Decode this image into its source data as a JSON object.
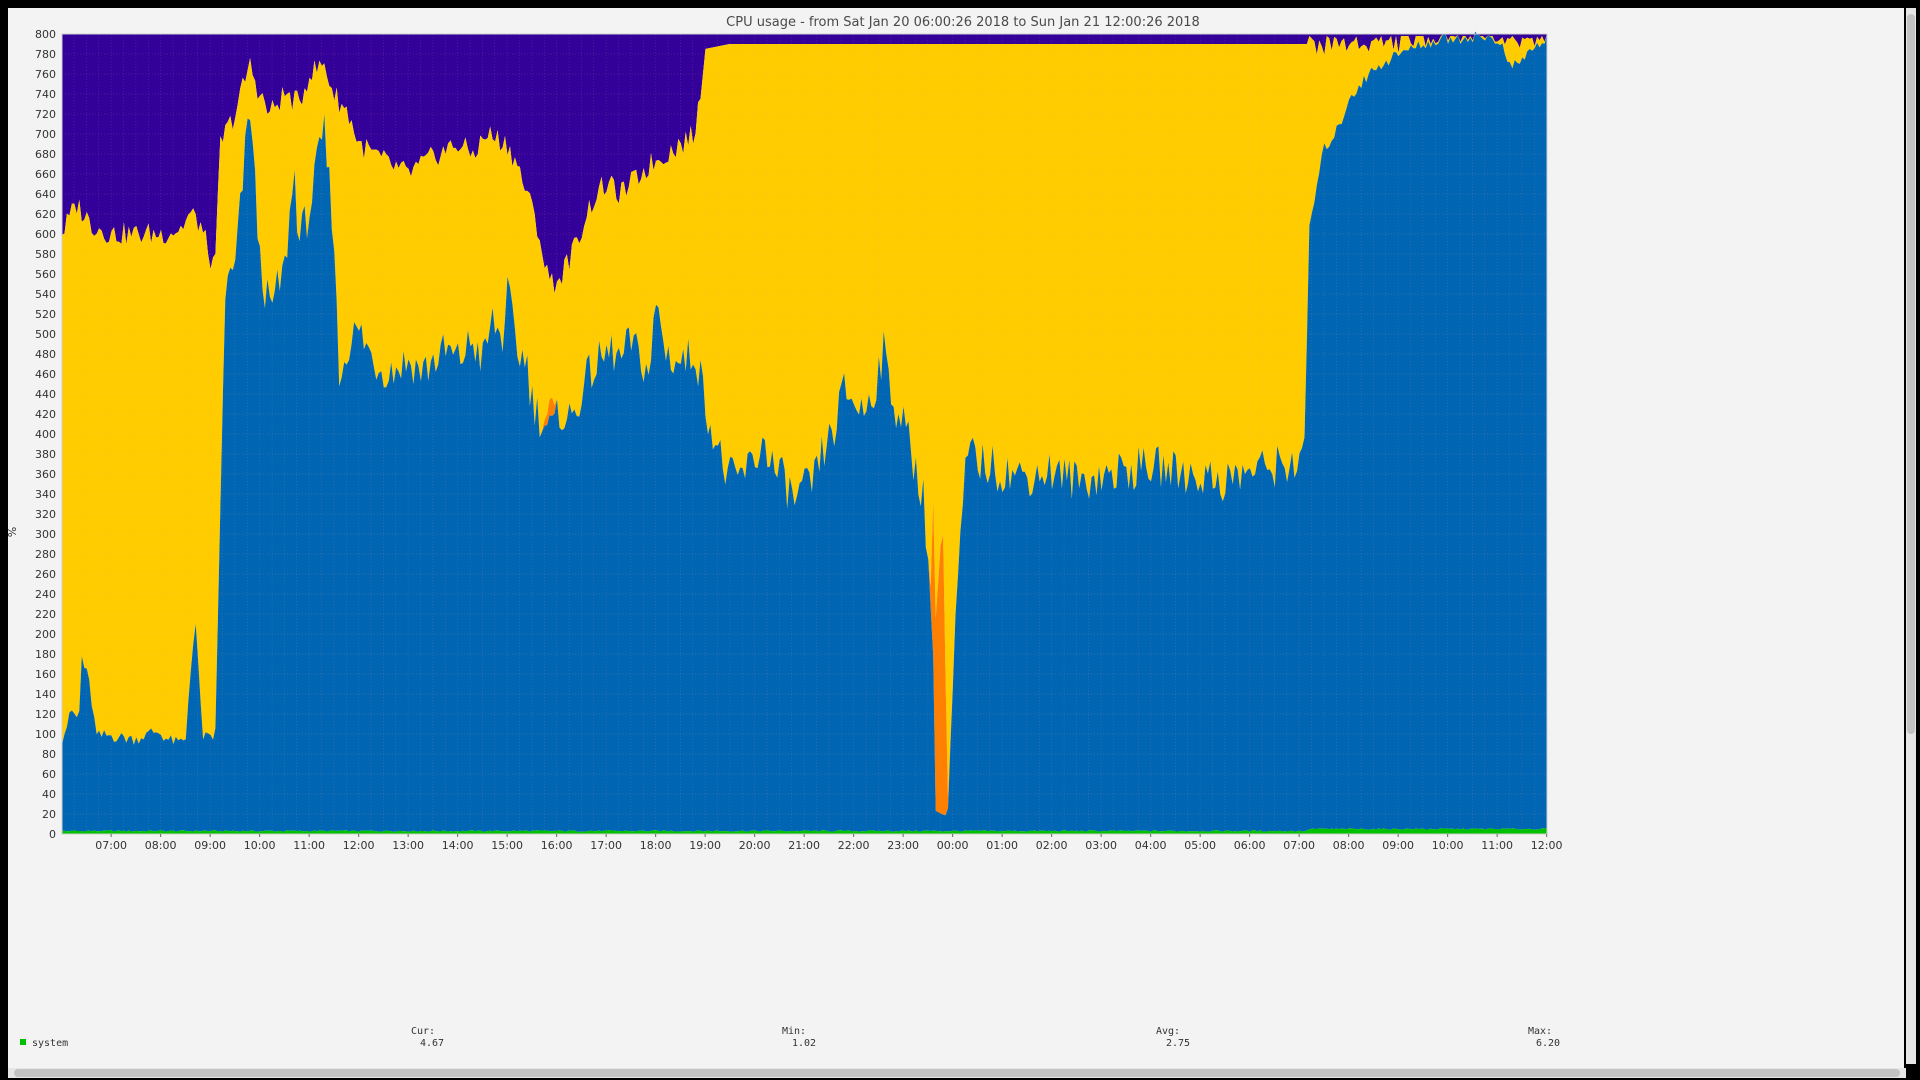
{
  "chart_data": {
    "type": "area",
    "title": "CPU usage - from Sat Jan 20 06:00:26 2018 to Sun Jan 21 12:00:26 2018",
    "ylabel": "%",
    "ylim": [
      0,
      800
    ],
    "y_tick_step": 20,
    "x_start_hour": 6.007,
    "x_end_hour": 36.007,
    "x_ticks": [
      "07:00",
      "08:00",
      "09:00",
      "10:00",
      "11:00",
      "12:00",
      "13:00",
      "14:00",
      "15:00",
      "16:00",
      "17:00",
      "18:00",
      "19:00",
      "20:00",
      "21:00",
      "22:00",
      "23:00",
      "00:00",
      "01:00",
      "02:00",
      "03:00",
      "04:00",
      "05:00",
      "06:00",
      "07:00",
      "08:00",
      "09:00",
      "10:00",
      "11:00",
      "12:00"
    ],
    "x_tick_hours": [
      7,
      8,
      9,
      10,
      11,
      12,
      13,
      14,
      15,
      16,
      17,
      18,
      19,
      20,
      21,
      22,
      23,
      24,
      25,
      26,
      27,
      28,
      29,
      30,
      31,
      32,
      33,
      34,
      35,
      36
    ],
    "grid": true,
    "colors": {
      "system": "#00c000",
      "user": "#0066b3",
      "iowait": "#ff8000",
      "nice": "#ffcc00",
      "idle": "#330099",
      "background": "#f3f3f3",
      "plot_background": "#ffffff"
    },
    "series_order": [
      "system",
      "user",
      "iowait",
      "nice",
      "idle"
    ],
    "series_profiles": {
      "user": [
        [
          6.0,
          90
        ],
        [
          6.2,
          120
        ],
        [
          6.35,
          110
        ],
        [
          6.4,
          175
        ],
        [
          6.55,
          150
        ],
        [
          6.7,
          95
        ],
        [
          7.0,
          95
        ],
        [
          7.5,
          92
        ],
        [
          7.9,
          100
        ],
        [
          8.2,
          90
        ],
        [
          8.5,
          88
        ],
        [
          8.6,
          160
        ],
        [
          8.7,
          210
        ],
        [
          8.85,
          95
        ],
        [
          9.1,
          90
        ],
        [
          9.2,
          300
        ],
        [
          9.3,
          540
        ],
        [
          9.5,
          560
        ],
        [
          9.8,
          730
        ],
        [
          10.0,
          570
        ],
        [
          10.2,
          520
        ],
        [
          10.5,
          560
        ],
        [
          10.7,
          660
        ],
        [
          10.8,
          590
        ],
        [
          11.0,
          620
        ],
        [
          11.3,
          700
        ],
        [
          11.5,
          600
        ],
        [
          11.6,
          450
        ],
        [
          11.8,
          490
        ],
        [
          12.0,
          500
        ],
        [
          12.3,
          470
        ],
        [
          12.6,
          460
        ],
        [
          13.0,
          470
        ],
        [
          13.3,
          460
        ],
        [
          13.5,
          470
        ],
        [
          13.8,
          480
        ],
        [
          14.0,
          470
        ],
        [
          14.3,
          490
        ],
        [
          14.5,
          470
        ],
        [
          14.7,
          510
        ],
        [
          14.9,
          490
        ],
        [
          15.0,
          540
        ],
        [
          15.2,
          480
        ],
        [
          15.4,
          470
        ],
        [
          15.5,
          430
        ],
        [
          15.7,
          410
        ],
        [
          15.9,
          400
        ],
        [
          16.1,
          420
        ],
        [
          16.3,
          410
        ],
        [
          16.5,
          440
        ],
        [
          16.7,
          460
        ],
        [
          16.9,
          470
        ],
        [
          17.1,
          480
        ],
        [
          17.3,
          470
        ],
        [
          17.5,
          490
        ],
        [
          17.7,
          470
        ],
        [
          17.9,
          460
        ],
        [
          18.0,
          530
        ],
        [
          18.2,
          480
        ],
        [
          18.4,
          470
        ],
        [
          18.6,
          470
        ],
        [
          18.8,
          480
        ],
        [
          19.0,
          430
        ],
        [
          19.2,
          390
        ],
        [
          19.4,
          360
        ],
        [
          19.6,
          350
        ],
        [
          19.8,
          360
        ],
        [
          20.0,
          370
        ],
        [
          20.2,
          390
        ],
        [
          20.4,
          360
        ],
        [
          20.6,
          350
        ],
        [
          20.8,
          330
        ],
        [
          21.0,
          340
        ],
        [
          21.2,
          350
        ],
        [
          21.4,
          380
        ],
        [
          21.6,
          400
        ],
        [
          21.8,
          440
        ],
        [
          22.0,
          430
        ],
        [
          22.2,
          420
        ],
        [
          22.4,
          440
        ],
        [
          22.6,
          480
        ],
        [
          22.8,
          430
        ],
        [
          23.0,
          410
        ],
        [
          23.2,
          370
        ],
        [
          23.4,
          340
        ],
        [
          23.6,
          200
        ],
        [
          23.65,
          20
        ],
        [
          23.9,
          15
        ],
        [
          24.1,
          250
        ],
        [
          24.3,
          380
        ],
        [
          24.5,
          370
        ],
        [
          25.0,
          360
        ],
        [
          25.5,
          355
        ],
        [
          26.0,
          360
        ],
        [
          26.5,
          350
        ],
        [
          27.0,
          355
        ],
        [
          27.5,
          360
        ],
        [
          28.0,
          365
        ],
        [
          28.5,
          360
        ],
        [
          29.0,
          355
        ],
        [
          29.5,
          350
        ],
        [
          30.0,
          360
        ],
        [
          30.5,
          365
        ],
        [
          31.0,
          370
        ],
        [
          31.1,
          360
        ],
        [
          31.2,
          600
        ],
        [
          31.5,
          680
        ],
        [
          31.8,
          700
        ],
        [
          32.0,
          730
        ],
        [
          32.5,
          760
        ],
        [
          33.0,
          775
        ],
        [
          33.5,
          785
        ],
        [
          34.0,
          790
        ],
        [
          34.5,
          792
        ],
        [
          35.0,
          790
        ],
        [
          35.3,
          760
        ],
        [
          35.6,
          775
        ],
        [
          36.0,
          790
        ]
      ],
      "iowait": [
        [
          6.0,
          0
        ],
        [
          15.7,
          0
        ],
        [
          15.8,
          10
        ],
        [
          15.9,
          20
        ],
        [
          16.0,
          0
        ],
        [
          23.55,
          0
        ],
        [
          23.6,
          150
        ],
        [
          23.8,
          300
        ],
        [
          23.9,
          10
        ],
        [
          24.0,
          0
        ],
        [
          36.0,
          0
        ]
      ],
      "total": [
        [
          6.0,
          600
        ],
        [
          6.3,
          630
        ],
        [
          6.6,
          610
        ],
        [
          7.0,
          600
        ],
        [
          8.0,
          600
        ],
        [
          8.4,
          605
        ],
        [
          8.6,
          620
        ],
        [
          8.8,
          610
        ],
        [
          9.1,
          560
        ],
        [
          9.2,
          690
        ],
        [
          9.5,
          720
        ],
        [
          9.8,
          770
        ],
        [
          10.0,
          740
        ],
        [
          10.2,
          720
        ],
        [
          10.5,
          740
        ],
        [
          10.8,
          730
        ],
        [
          11.0,
          760
        ],
        [
          11.3,
          770
        ],
        [
          11.5,
          740
        ],
        [
          11.8,
          720
        ],
        [
          12.0,
          690
        ],
        [
          12.3,
          680
        ],
        [
          12.6,
          670
        ],
        [
          13.0,
          660
        ],
        [
          13.3,
          670
        ],
        [
          13.6,
          680
        ],
        [
          14.0,
          690
        ],
        [
          14.3,
          680
        ],
        [
          14.6,
          700
        ],
        [
          15.0,
          690
        ],
        [
          15.2,
          670
        ],
        [
          15.4,
          640
        ],
        [
          15.6,
          610
        ],
        [
          15.8,
          560
        ],
        [
          16.0,
          550
        ],
        [
          16.2,
          570
        ],
        [
          16.4,
          590
        ],
        [
          16.6,
          620
        ],
        [
          16.8,
          640
        ],
        [
          17.0,
          650
        ],
        [
          17.3,
          640
        ],
        [
          17.5,
          650
        ],
        [
          17.7,
          660
        ],
        [
          17.9,
          670
        ],
        [
          18.2,
          680
        ],
        [
          18.5,
          690
        ],
        [
          18.8,
          700
        ],
        [
          19.0,
          785
        ],
        [
          19.5,
          790
        ],
        [
          20.0,
          790
        ],
        [
          22.0,
          790
        ],
        [
          24.0,
          790
        ],
        [
          26.0,
          790
        ],
        [
          28.0,
          790
        ],
        [
          30.0,
          790
        ],
        [
          31.0,
          790
        ],
        [
          31.2,
          790
        ],
        [
          36.0,
          795
        ]
      ],
      "system_level": 3
    }
  },
  "legend": {
    "system_label": "system",
    "cur_label": "Cur:",
    "cur_value": "4.67",
    "min_label": "Min:",
    "min_value": "1.02",
    "avg_label": "Avg:",
    "avg_value": "2.75",
    "max_label": "Max:",
    "max_value": "6.20"
  }
}
